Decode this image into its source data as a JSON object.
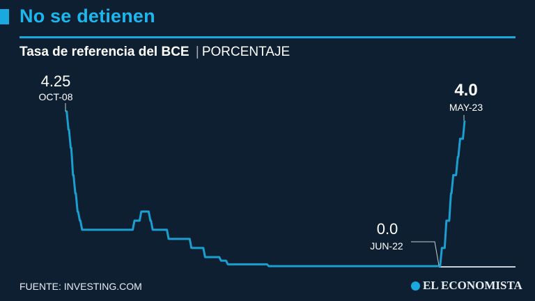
{
  "header": {
    "title": "No se detienen",
    "subtitle_bold": "Tasa de referencia del BCE",
    "subtitle_separator": "|",
    "subtitle_unit": "PORCENTAJE"
  },
  "footer": {
    "source": "FUENTE: INVESTING.COM",
    "logo": "EL ECONOMISTA"
  },
  "colors": {
    "background": "#0d1f30",
    "accent": "#1aa9df",
    "line": "#1a9fd0",
    "baseline": "#c8d0d8"
  },
  "chart_data": {
    "type": "line",
    "title": "Tasa de referencia del BCE",
    "ylabel": "PORCENTAJE",
    "ylim": [
      0,
      4.25
    ],
    "xlim": [
      "2008-10",
      "2023-05"
    ],
    "grid": false,
    "step": true,
    "series": [
      {
        "points": [
          [
            "2008-10",
            4.25
          ],
          [
            "2008-11",
            3.75
          ],
          [
            "2008-12",
            3.25
          ],
          [
            "2009-01",
            2.5
          ],
          [
            "2009-02",
            2.0
          ],
          [
            "2009-03",
            1.5
          ],
          [
            "2009-04",
            1.25
          ],
          [
            "2009-05",
            1.0
          ],
          [
            "2011-04",
            1.25
          ],
          [
            "2011-07",
            1.5
          ],
          [
            "2011-11",
            1.25
          ],
          [
            "2011-12",
            1.0
          ],
          [
            "2012-07",
            0.75
          ],
          [
            "2013-05",
            0.5
          ],
          [
            "2013-11",
            0.25
          ],
          [
            "2014-06",
            0.15
          ],
          [
            "2014-09",
            0.05
          ],
          [
            "2016-03",
            0.0
          ],
          [
            "2022-06",
            0.0
          ],
          [
            "2022-07",
            0.5
          ],
          [
            "2022-09",
            1.25
          ],
          [
            "2022-11",
            2.0
          ],
          [
            "2022-12",
            2.5
          ],
          [
            "2023-02",
            3.0
          ],
          [
            "2023-03",
            3.5
          ],
          [
            "2023-05",
            4.0
          ]
        ]
      }
    ],
    "annotations": [
      {
        "date": "2008-10",
        "value_label": "4.25",
        "date_label": "OCT-08"
      },
      {
        "date": "2022-06",
        "value_label": "0.0",
        "date_label": "JUN-22"
      },
      {
        "date": "2023-05",
        "value_label": "4.0",
        "date_label": "MAY-23"
      }
    ]
  }
}
